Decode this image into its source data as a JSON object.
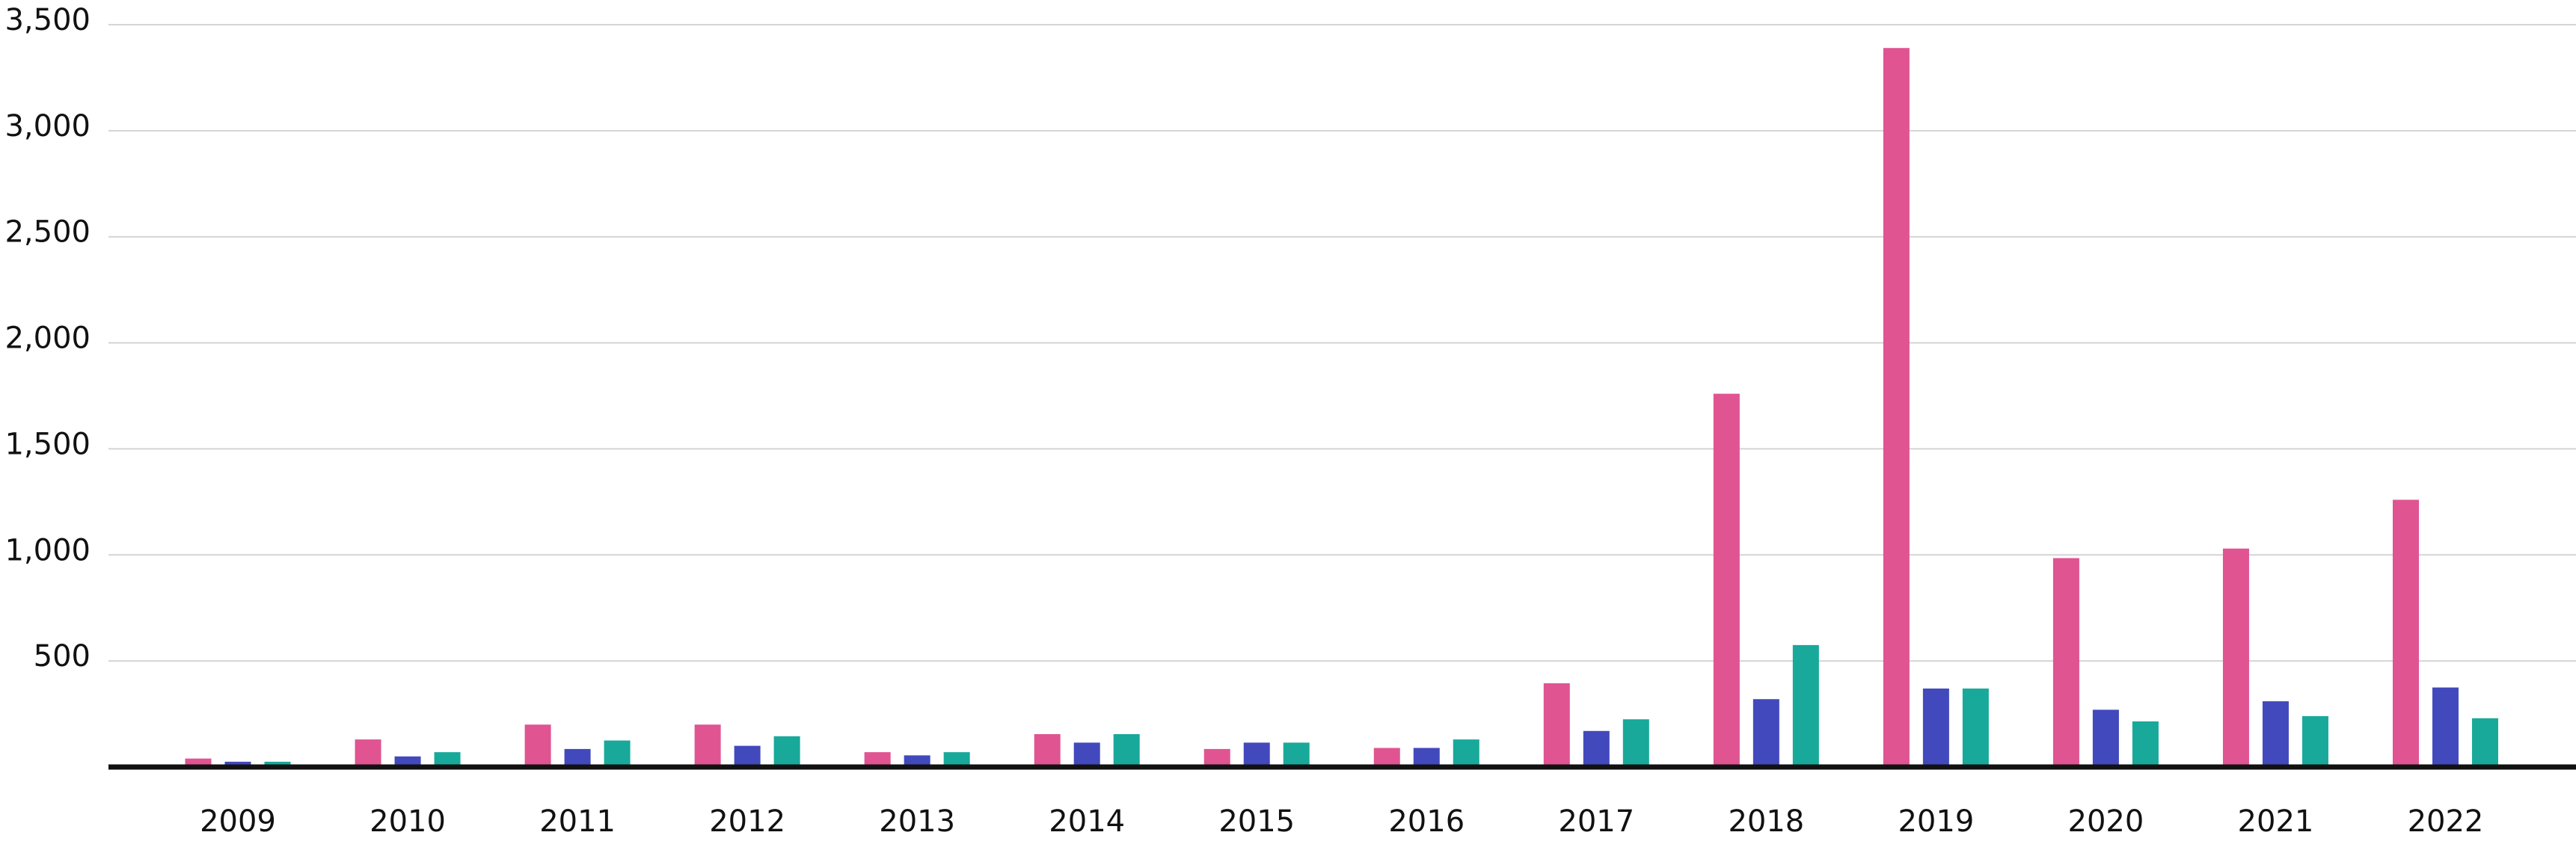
{
  "chart_data": {
    "type": "bar",
    "categories": [
      "2009",
      "2010",
      "2011",
      "2012",
      "2013",
      "2014",
      "2015",
      "2016",
      "2017",
      "2018",
      "2019",
      "2020",
      "2021",
      "2022"
    ],
    "series": [
      {
        "color": "#e05492",
        "values": [
          40,
          130,
          200,
          200,
          70,
          155,
          85,
          90,
          395,
          1760,
          3390,
          985,
          1030,
          1260
        ]
      },
      {
        "color": "#4249bd",
        "values": [
          25,
          50,
          85,
          100,
          55,
          115,
          115,
          90,
          170,
          320,
          370,
          270,
          310,
          375
        ]
      },
      {
        "color": "#18a99b",
        "values": [
          25,
          70,
          125,
          145,
          70,
          155,
          115,
          130,
          225,
          575,
          370,
          215,
          240,
          230
        ]
      }
    ],
    "ylim": [
      0,
      3500
    ],
    "yticks": [
      500,
      {
        "value": 1000,
        "label": "1,000"
      },
      {
        "value": 1500,
        "label": "1,500"
      },
      {
        "value": 2000,
        "label": "2,000"
      },
      {
        "value": 2500,
        "label": "2,500"
      },
      {
        "value": 3000,
        "label": "3,000"
      },
      {
        "value": 3500,
        "label": "3,500"
      }
    ],
    "grid": true
  }
}
